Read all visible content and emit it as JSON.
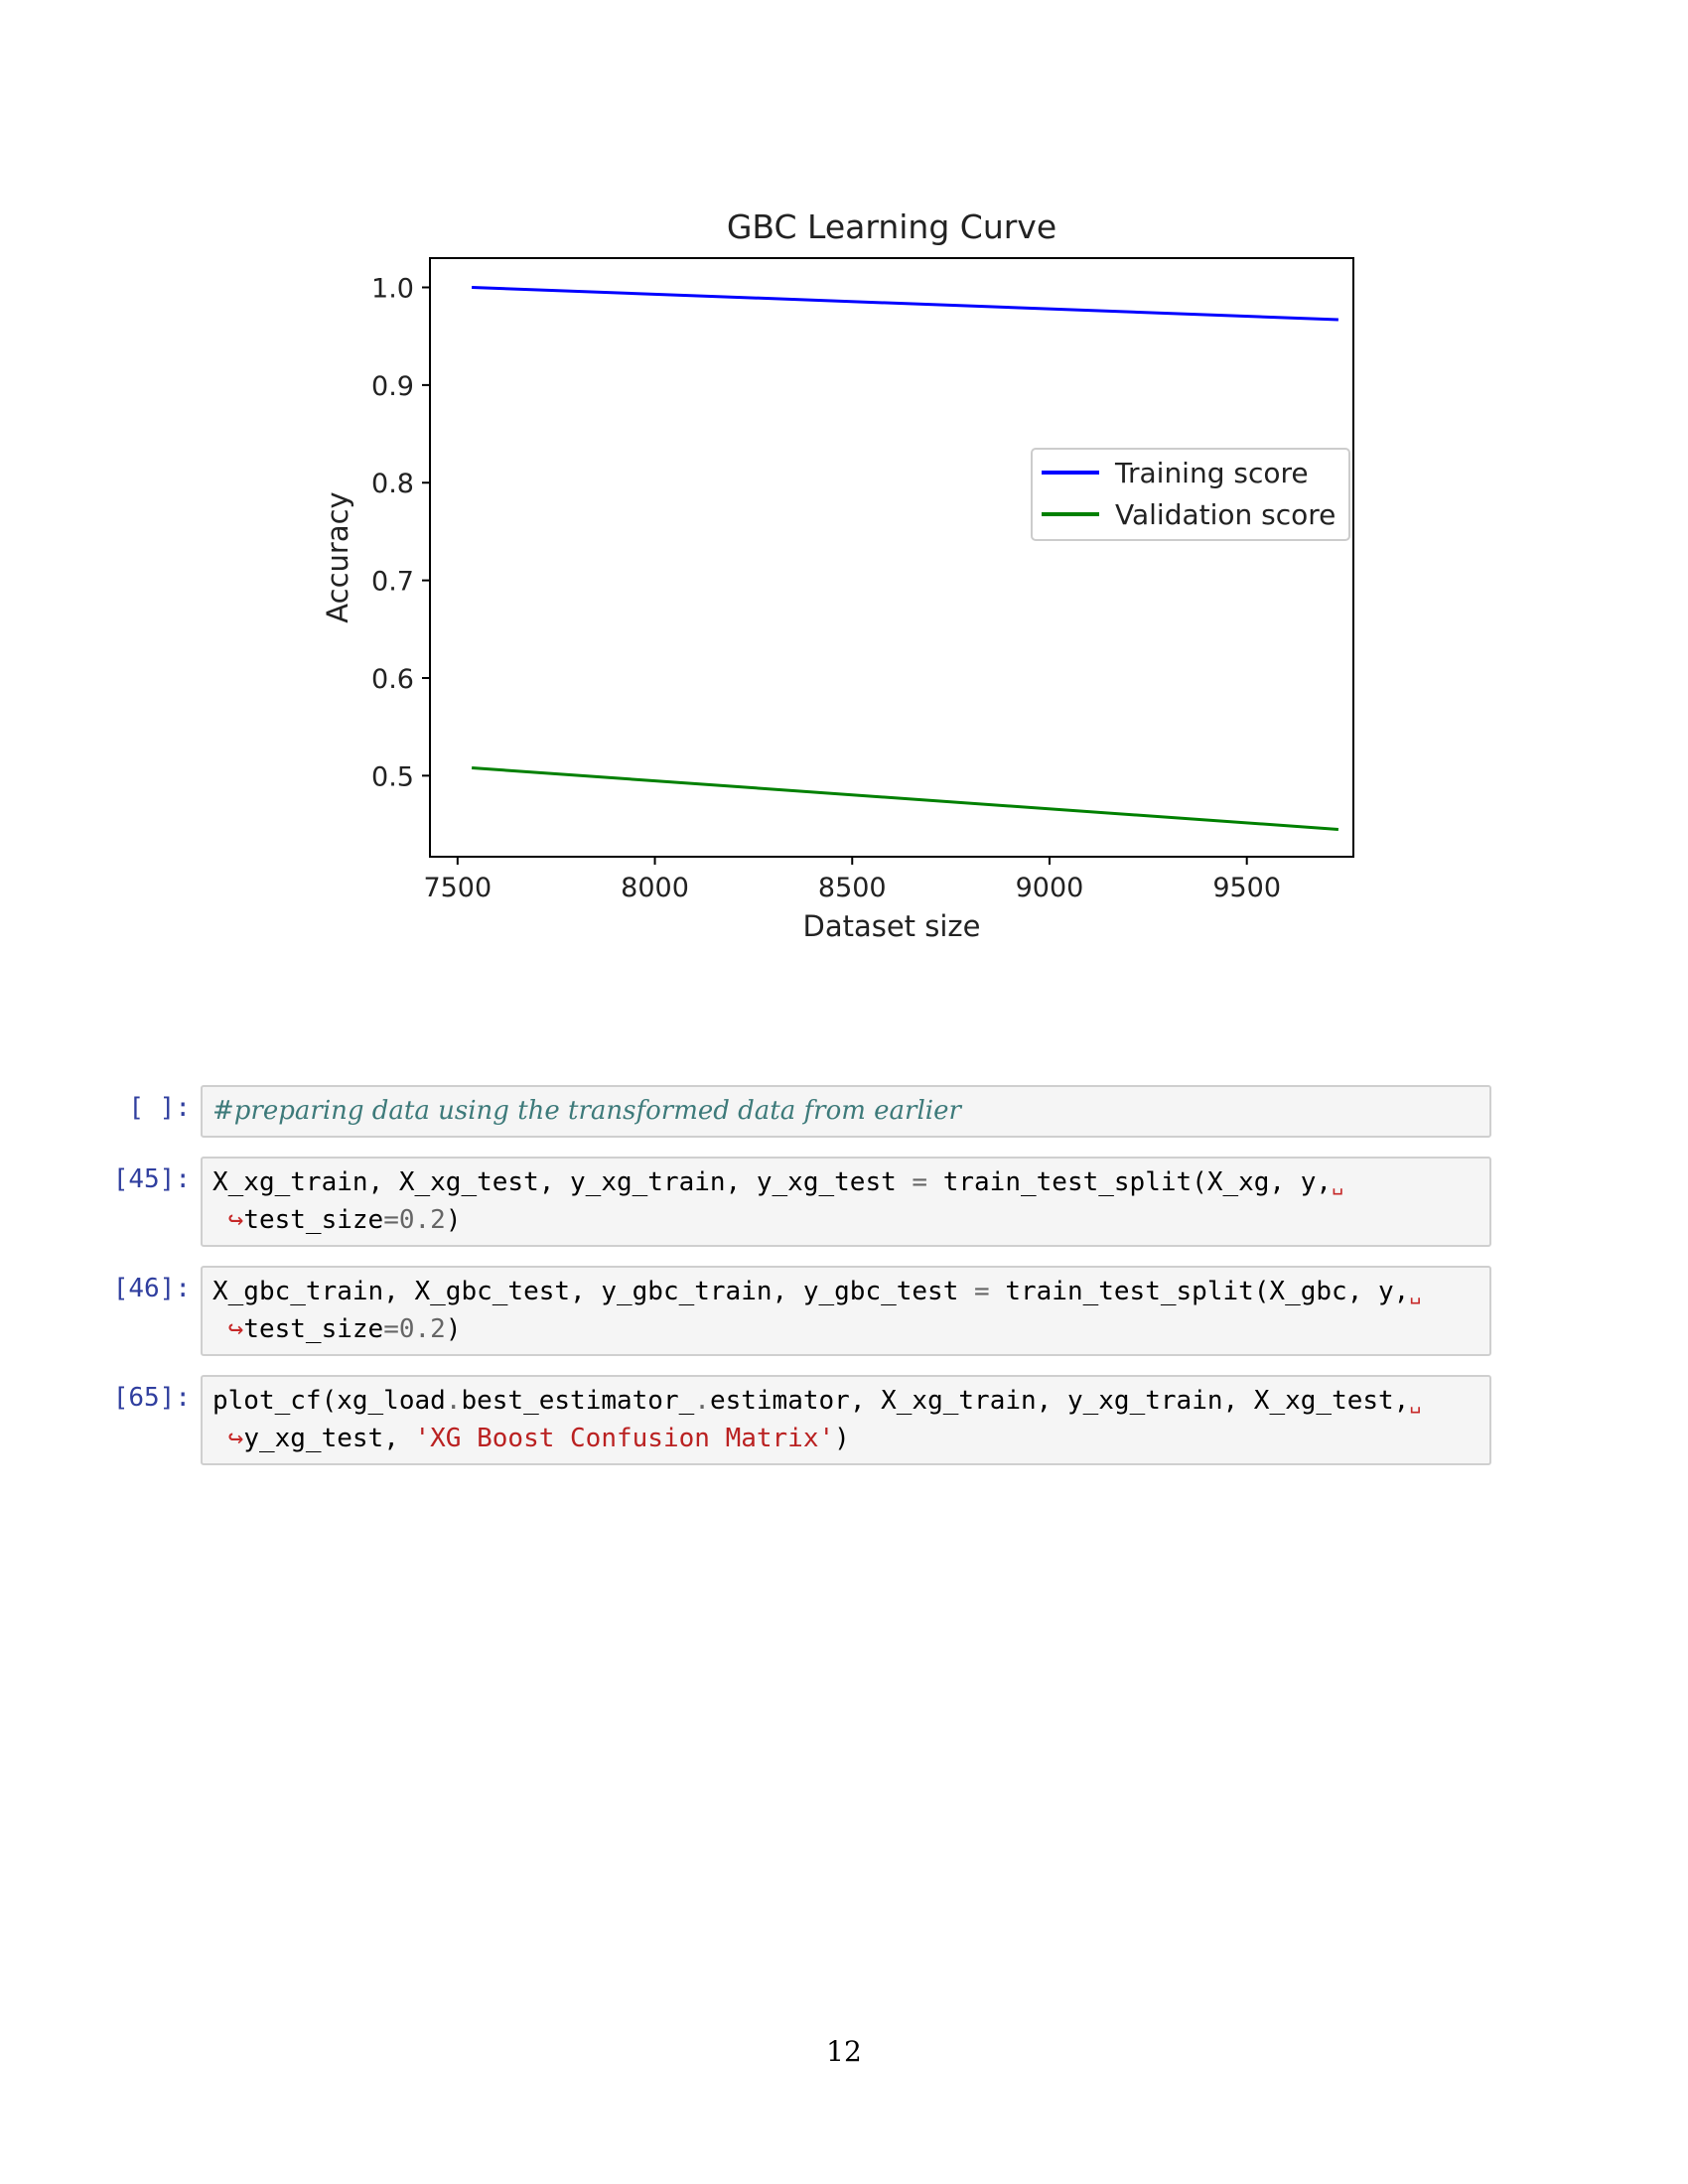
{
  "chart_data": {
    "type": "line",
    "title": "GBC Learning Curve",
    "xlabel": "Dataset size",
    "ylabel": "Accuracy",
    "xlim": [
      7430,
      9770
    ],
    "ylim": [
      0.417,
      1.03
    ],
    "xticks": [
      7500,
      8000,
      8500,
      9000,
      9500
    ],
    "xtick_labels": [
      "7500",
      "8000",
      "8500",
      "9000",
      "9500"
    ],
    "yticks": [
      0.5,
      0.6,
      0.7,
      0.8,
      0.9,
      1.0
    ],
    "ytick_labels": [
      "0.5",
      "0.6",
      "0.7",
      "0.8",
      "0.9",
      "1.0"
    ],
    "x": [
      7536,
      9732
    ],
    "series": [
      {
        "name": "Training score",
        "color": "#0000ff",
        "values": [
          1.0,
          0.967
        ]
      },
      {
        "name": "Validation score",
        "color": "#008000",
        "values": [
          0.508,
          0.445
        ]
      }
    ],
    "legend_position": "center-right",
    "grid": false
  },
  "cells": [
    {
      "prompt": "[ ]:",
      "lines": [
        [
          {
            "t": "#preparing data using the transformed data from earlier",
            "c": "comment"
          }
        ]
      ]
    },
    {
      "prompt": "[45]:",
      "lines": [
        [
          {
            "t": "X_xg_train, X_xg_test, y_xg_train, y_xg_test ",
            "c": ""
          },
          {
            "t": "=",
            "c": "op"
          },
          {
            "t": " train_test_split(X_xg, y,",
            "c": ""
          },
          {
            "t": "␣",
            "c": "cont-mark"
          }
        ],
        [
          {
            "t": " ↪",
            "c": "cont-arrow"
          },
          {
            "t": "test_size",
            "c": ""
          },
          {
            "t": "=",
            "c": "op"
          },
          {
            "t": "0.2",
            "c": "num"
          },
          {
            "t": ")",
            "c": ""
          }
        ]
      ]
    },
    {
      "prompt": "[46]:",
      "lines": [
        [
          {
            "t": "X_gbc_train, X_gbc_test, y_gbc_train, y_gbc_test ",
            "c": ""
          },
          {
            "t": "=",
            "c": "op"
          },
          {
            "t": " train_test_split(X_gbc, y,",
            "c": ""
          },
          {
            "t": "␣",
            "c": "cont-mark"
          }
        ],
        [
          {
            "t": " ↪",
            "c": "cont-arrow"
          },
          {
            "t": "test_size",
            "c": ""
          },
          {
            "t": "=",
            "c": "op"
          },
          {
            "t": "0.2",
            "c": "num"
          },
          {
            "t": ")",
            "c": ""
          }
        ]
      ]
    },
    {
      "prompt": "[65]:",
      "lines": [
        [
          {
            "t": "plot_cf(xg_load",
            "c": ""
          },
          {
            "t": ".",
            "c": "op"
          },
          {
            "t": "best_estimator_",
            "c": ""
          },
          {
            "t": ".",
            "c": "op"
          },
          {
            "t": "estimator, X_xg_train, y_xg_train, X_xg_test,",
            "c": ""
          },
          {
            "t": "␣",
            "c": "cont-mark"
          }
        ],
        [
          {
            "t": " ↪",
            "c": "cont-arrow"
          },
          {
            "t": "y_xg_test, ",
            "c": ""
          },
          {
            "t": "'XG Boost Confusion Matrix'",
            "c": "str"
          },
          {
            "t": ")",
            "c": ""
          }
        ]
      ]
    }
  ],
  "page_number": "12"
}
